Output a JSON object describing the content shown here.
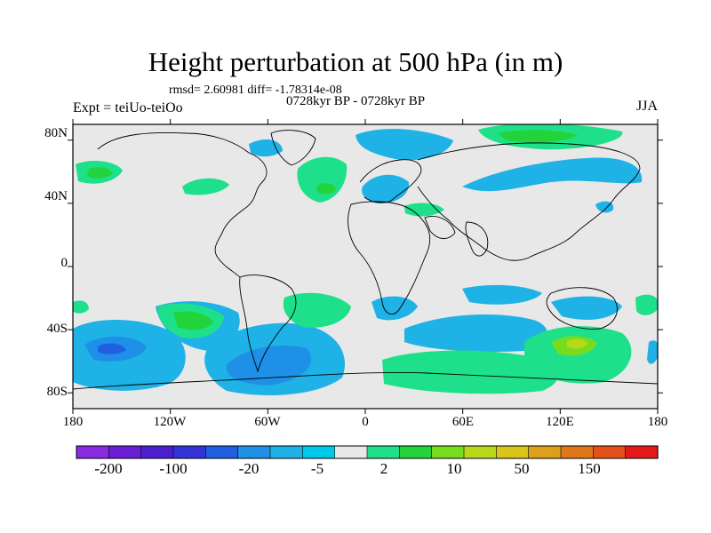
{
  "title": "Height perturbation at 500 hPa (in m)",
  "stats": "rmsd= 2.60981 diff= -1.78314e-08",
  "period": "0728kyr BP - 0728kyr BP",
  "experiment": "Expt = teiUo-teiOo",
  "season": "JJA",
  "latitude_labels": [
    "80N",
    "40N",
    "0",
    "40S",
    "80S"
  ],
  "longitude_labels": [
    "180",
    "120W",
    "60W",
    "0",
    "60E",
    "120E",
    "180"
  ],
  "colorbar": {
    "labels": [
      "-200",
      "-100",
      "-20",
      "-5",
      "2",
      "10",
      "50",
      "150"
    ],
    "colors": [
      "#8a2be2",
      "#6a1fd6",
      "#4b1fd0",
      "#3333d8",
      "#2060e0",
      "#1e90e8",
      "#1fb2e6",
      "#00c8e8",
      "#e8e8e8",
      "#1ee08a",
      "#22d43a",
      "#78dc1e",
      "#b8d81a",
      "#d8c41a",
      "#dca01a",
      "#e0781a",
      "#e4501a",
      "#e41a1a"
    ]
  },
  "chart_data": {
    "type": "heatmap",
    "title": "Height perturbation at 500 hPa (in m)",
    "xlabel": "",
    "ylabel": "",
    "xlim": [
      -180,
      180
    ],
    "ylim": [
      -90,
      90
    ],
    "x_ticks": [
      -180,
      -120,
      -60,
      0,
      60,
      120,
      180
    ],
    "y_ticks": [
      80,
      40,
      0,
      -40,
      -80
    ],
    "contour_levels": [
      -200,
      -150,
      -100,
      -50,
      -20,
      -10,
      -5,
      -2,
      2,
      5,
      10,
      20,
      50,
      100,
      150,
      200
    ],
    "background_color": "#e8e8e8"
  }
}
